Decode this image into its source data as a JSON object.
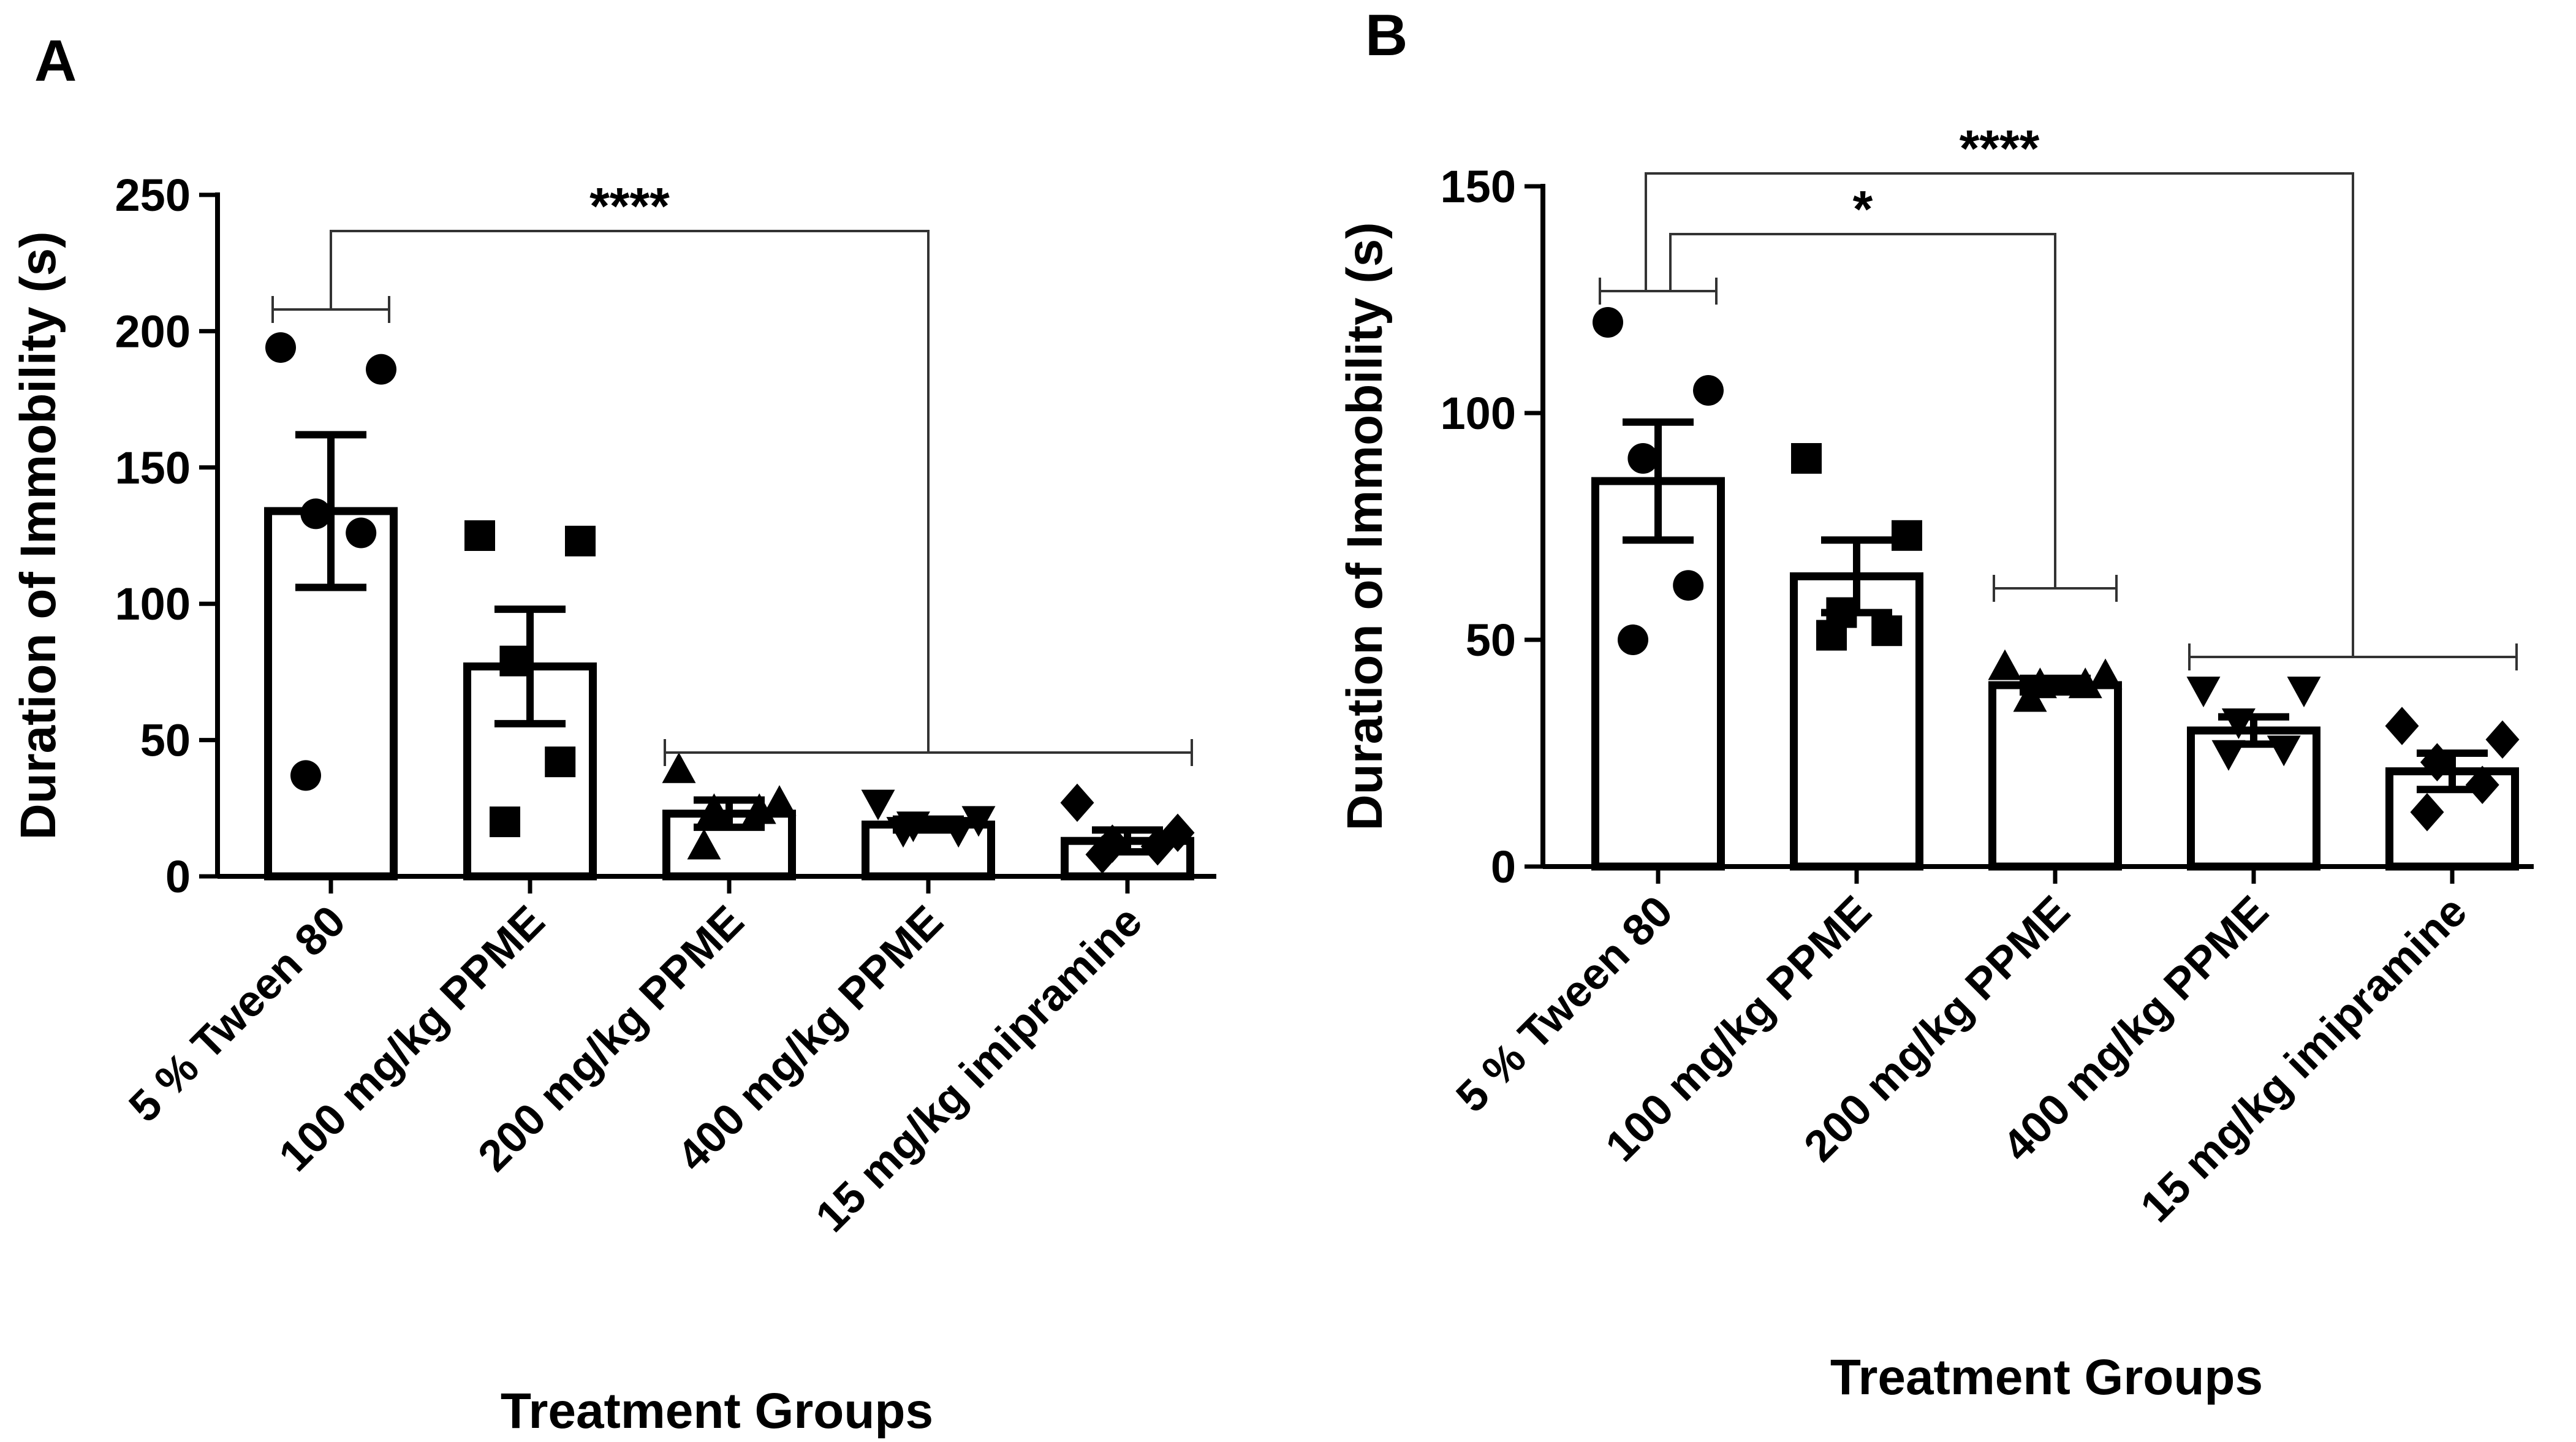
{
  "panels": [
    {
      "letter": "A"
    },
    {
      "letter": "B"
    }
  ],
  "colors": {
    "axis": "#000000",
    "bar_fill": "#ffffff",
    "points": "#000000",
    "bracket": "#333333"
  },
  "chart_data": [
    {
      "type": "bar",
      "panel": "A",
      "title": "",
      "xlabel": "Treatment Groups",
      "ylabel": "Duration of Immobility (s)",
      "ylim": [
        0,
        250
      ],
      "yticks": [
        0,
        50,
        100,
        150,
        200,
        250
      ],
      "grid": false,
      "categories": [
        "5 % Tween 80",
        "100 mg/kg PPME",
        "200 mg/kg PPME",
        "400 mg/kg PPME",
        "15 mg/kg imipramine"
      ],
      "values": [
        134,
        77,
        23,
        19,
        13
      ],
      "sem": [
        28,
        21,
        5,
        2,
        4
      ],
      "markers": [
        "circle",
        "square",
        "triangle-up",
        "triangle-down",
        "diamond"
      ],
      "points": [
        [
          194,
          186,
          133,
          126,
          37
        ],
        [
          125,
          123,
          79,
          42,
          20
        ],
        [
          39,
          27,
          24,
          24,
          11
        ],
        [
          27,
          21,
          19,
          17,
          17
        ],
        [
          27,
          16,
          12,
          11,
          8
        ]
      ],
      "significance": [
        {
          "from": "5 % Tween 80",
          "to": [
            "200 mg/kg PPME",
            "400 mg/kg PPME",
            "15 mg/kg imipramine"
          ],
          "label": "****"
        }
      ]
    },
    {
      "type": "bar",
      "panel": "B",
      "title": "",
      "xlabel": "Treatment Groups",
      "ylabel": "Duration of Immobility (s)",
      "ylim": [
        0,
        150
      ],
      "yticks": [
        0,
        50,
        100,
        150
      ],
      "grid": false,
      "categories": [
        "5 % Tween 80",
        "100 mg/kg PPME",
        "200 mg/kg PPME",
        "400 mg/kg PPME",
        "15 mg/kg imipramine"
      ],
      "values": [
        85,
        64,
        40,
        30,
        21
      ],
      "sem": [
        13,
        8,
        1.5,
        3,
        4
      ],
      "markers": [
        "circle",
        "square",
        "triangle-up",
        "triangle-down",
        "diamond"
      ],
      "points": [
        [
          120,
          105,
          90,
          62,
          50
        ],
        [
          90,
          73,
          56,
          52,
          51
        ],
        [
          44,
          42,
          40,
          40,
          37
        ],
        [
          39,
          39,
          32,
          26,
          25
        ],
        [
          31,
          28,
          23,
          18,
          12
        ]
      ],
      "significance": [
        {
          "from": "5 % Tween 80",
          "to": [
            "200 mg/kg PPME"
          ],
          "label": "*"
        },
        {
          "from": "5 % Tween 80",
          "to": [
            "400 mg/kg PPME",
            "15 mg/kg imipramine"
          ],
          "label": "****"
        }
      ]
    }
  ]
}
